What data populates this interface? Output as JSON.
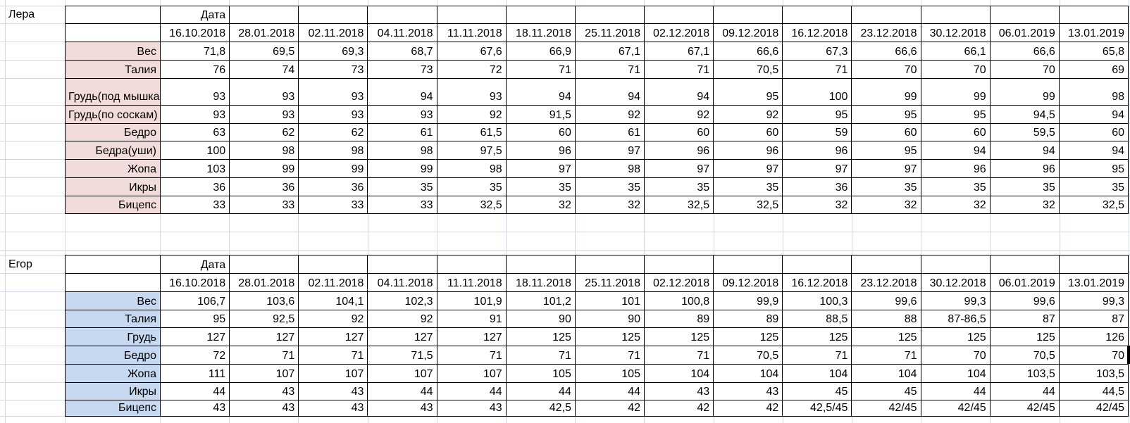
{
  "colors": {
    "lera_label_bg": "#f2dcdb",
    "egor_label_bg": "#c6d9f1",
    "gridline": "#d0d7e5",
    "table_border": "#000000"
  },
  "tables": [
    {
      "person": "Лера",
      "header_label": "Дата",
      "label_bg": "#f2dcdb",
      "dates": [
        "16.10.2018",
        "28.01.2018",
        "02.11.2018",
        "04.11.2018",
        "11.11.2018",
        "18.11.2018",
        "25.11.2018",
        "02.12.2018",
        "09.12.2018",
        "16.12.2018",
        "23.12.2018",
        "30.12.2018",
        "06.01.2019",
        "13.01.2019"
      ],
      "rows": [
        {
          "label": "Вес",
          "values": [
            "71,8",
            "69,5",
            "69,3",
            "68,7",
            "67,6",
            "66,9",
            "67,1",
            "67,1",
            "66,6",
            "67,3",
            "66,6",
            "66,1",
            "66,6",
            "65,8"
          ]
        },
        {
          "label": "Талия",
          "values": [
            "76",
            "74",
            "73",
            "73",
            "72",
            "71",
            "71",
            "71",
            "70,5",
            "71",
            "70",
            "70",
            "70",
            "69"
          ]
        },
        {
          "label": "Грудь(под мышками)",
          "small": true,
          "values": [
            "93",
            "93",
            "93",
            "94",
            "93",
            "94",
            "94",
            "94",
            "95",
            "100",
            "99",
            "99",
            "99",
            "98"
          ]
        },
        {
          "label": "Грудь(по соскам)",
          "small": true,
          "values": [
            "93",
            "93",
            "93",
            "93",
            "92",
            "91,5",
            "92",
            "92",
            "92",
            "95",
            "95",
            "95",
            "94,5",
            "94"
          ]
        },
        {
          "label": "Бедро",
          "values": [
            "63",
            "62",
            "62",
            "61",
            "61,5",
            "60",
            "61",
            "60",
            "60",
            "59",
            "60",
            "60",
            "59,5",
            "60"
          ]
        },
        {
          "label": "Бедра(уши)",
          "values": [
            "100",
            "98",
            "98",
            "98",
            "97,5",
            "96",
            "97",
            "96",
            "96",
            "96",
            "95",
            "94",
            "94",
            "94"
          ]
        },
        {
          "label": "Жопа",
          "values": [
            "103",
            "99",
            "99",
            "99",
            "98",
            "97",
            "98",
            "97",
            "97",
            "97",
            "97",
            "96",
            "96",
            "95"
          ]
        },
        {
          "label": "Икры",
          "values": [
            "36",
            "36",
            "36",
            "35",
            "35",
            "35",
            "35",
            "35",
            "35",
            "36",
            "35",
            "35",
            "35",
            "35"
          ]
        },
        {
          "label": "Бицепс",
          "values": [
            "33",
            "33",
            "33",
            "33",
            "32,5",
            "32",
            "32",
            "32,5",
            "32,5",
            "32",
            "32",
            "32",
            "32",
            "32,5"
          ]
        }
      ]
    },
    {
      "person": "Егор",
      "header_label": "Дата",
      "label_bg": "#c6d9f1",
      "dates": [
        "16.10.2018",
        "28.01.2018",
        "02.11.2018",
        "04.11.2018",
        "11.11.2018",
        "18.11.2018",
        "25.11.2018",
        "02.12.2018",
        "09.12.2018",
        "16.12.2018",
        "23.12.2018",
        "30.12.2018",
        "06.01.2019",
        "13.01.2019"
      ],
      "rows": [
        {
          "label": "Вес",
          "values": [
            "106,7",
            "103,6",
            "104,1",
            "102,3",
            "101,9",
            "101,2",
            "101",
            "100,8",
            "99,9",
            "100,3",
            "99,6",
            "99,3",
            "99,6",
            "99,3"
          ]
        },
        {
          "label": "Талия",
          "values": [
            "95",
            "92,5",
            "92",
            "92",
            "91",
            "90",
            "90",
            "89",
            "89",
            "88,5",
            "88",
            "87-86,5",
            "87",
            "87"
          ]
        },
        {
          "label": "Грудь",
          "values": [
            "127",
            "127",
            "127",
            "127",
            "127",
            "125",
            "125",
            "125",
            "125",
            "125",
            "125",
            "125",
            "125",
            "126"
          ]
        },
        {
          "label": "Бедро",
          "values": [
            "72",
            "71",
            "71",
            "71,5",
            "71",
            "71",
            "71",
            "71",
            "70,5",
            "71",
            "71",
            "70",
            "70,5",
            "70"
          ]
        },
        {
          "label": "Жопа",
          "values": [
            "111",
            "107",
            "107",
            "107",
            "107",
            "105",
            "105",
            "104",
            "104",
            "104",
            "104",
            "104",
            "103,5",
            "103,5"
          ]
        },
        {
          "label": "Икры",
          "values": [
            "44",
            "43",
            "43",
            "44",
            "44",
            "44",
            "44",
            "43",
            "43",
            "45",
            "45",
            "44",
            "44",
            "44,5"
          ]
        },
        {
          "label": "Бицепс",
          "values": [
            "43",
            "43",
            "43",
            "43",
            "43",
            "42,5",
            "42",
            "42",
            "42",
            "42,5/45",
            "42/45",
            "42/45",
            "42/45",
            "42/45"
          ]
        }
      ]
    }
  ]
}
